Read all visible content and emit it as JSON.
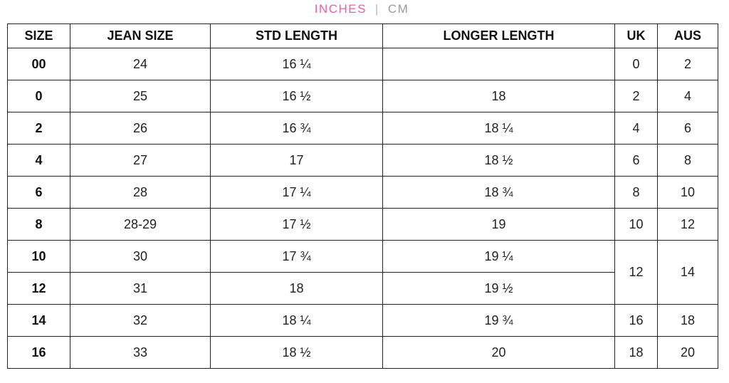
{
  "units": {
    "active": "INCHES",
    "separator": "|",
    "inactive": "CM"
  },
  "table": {
    "headers": {
      "size": "SIZE",
      "jean_size": "JEAN SIZE",
      "std_length": "STD LENGTH",
      "longer_length": "LONGER LENGTH",
      "uk": "UK",
      "aus": "AUS"
    },
    "rows": [
      {
        "size": "00",
        "jean": "24",
        "std": "16 ¼",
        "long": "",
        "uk": "0",
        "aus": "2"
      },
      {
        "size": "0",
        "jean": "25",
        "std": "16 ½",
        "long": "18",
        "uk": "2",
        "aus": "4"
      },
      {
        "size": "2",
        "jean": "26",
        "std": "16 ¾",
        "long": "18 ¼",
        "uk": "4",
        "aus": "6"
      },
      {
        "size": "4",
        "jean": "27",
        "std": "17",
        "long": "18 ½",
        "uk": "6",
        "aus": "8"
      },
      {
        "size": "6",
        "jean": "28",
        "std": "17 ¼",
        "long": "18 ¾",
        "uk": "8",
        "aus": "10"
      },
      {
        "size": "8",
        "jean": "28-29",
        "std": "17 ½",
        "long": "19",
        "uk": "10",
        "aus": "12"
      },
      {
        "size": "10",
        "jean": "30",
        "std": "17 ¾",
        "long": "19 ¼",
        "uk": "12",
        "aus": "14"
      },
      {
        "size": "12",
        "jean": "31",
        "std": "18",
        "long": "19 ½"
      },
      {
        "size": "14",
        "jean": "32",
        "std": "18 ¼",
        "long": "19 ¾",
        "uk": "16",
        "aus": "18"
      },
      {
        "size": "16",
        "jean": "33",
        "std": "18 ½",
        "long": "20",
        "uk": "18",
        "aus": "20"
      }
    ]
  }
}
